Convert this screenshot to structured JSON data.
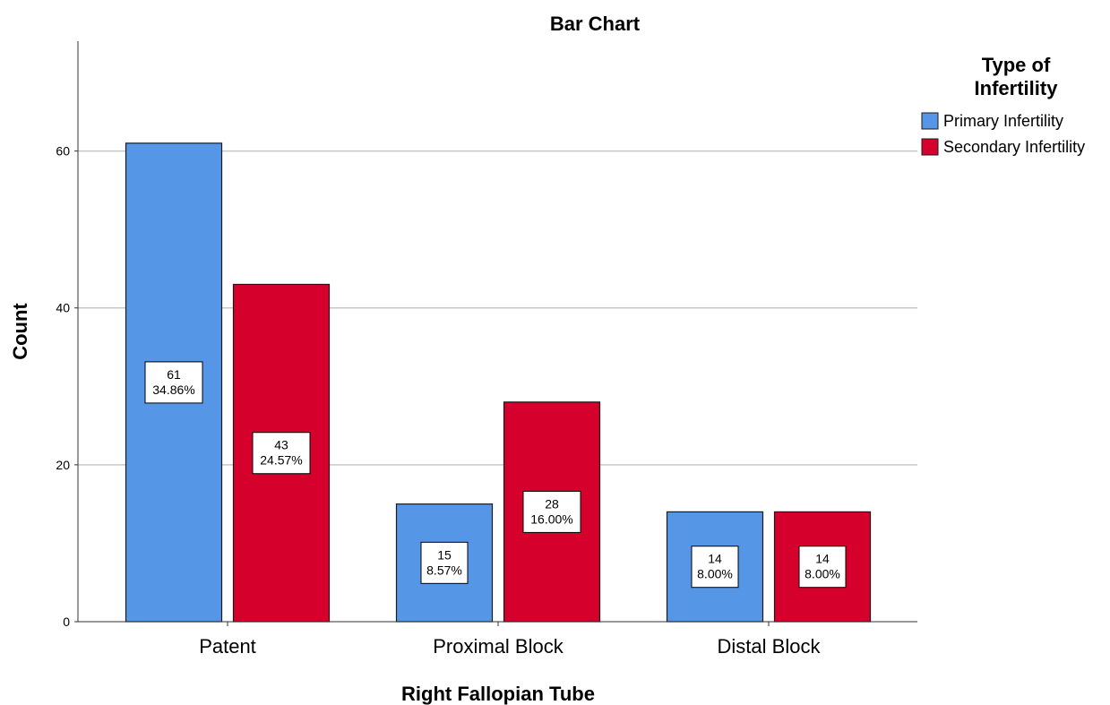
{
  "chart_data": {
    "type": "bar",
    "title": "Bar Chart",
    "xlabel": "Right Fallopian Tube",
    "ylabel": "Count",
    "categories": [
      "Patent",
      "Proximal Block",
      "Distal Block"
    ],
    "series": [
      {
        "name": "Primary Infertility",
        "color": "#5596e6",
        "values": [
          61,
          15,
          14
        ],
        "percent_labels": [
          "34.86%",
          "8.57%",
          "8.00%"
        ]
      },
      {
        "name": "Secondary Infertility",
        "color": "#d5002c",
        "values": [
          43,
          28,
          14
        ],
        "percent_labels": [
          "24.57%",
          "16.00%",
          "8.00%"
        ]
      }
    ],
    "ylim": [
      0,
      74
    ],
    "yticks": [
      0,
      20,
      40,
      60
    ],
    "grid": true,
    "legend": {
      "title_lines": [
        "Type of",
        "Infertility"
      ],
      "placement": "right"
    }
  }
}
